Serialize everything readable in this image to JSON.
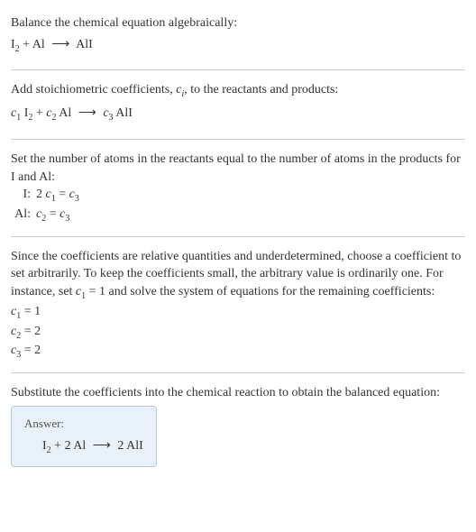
{
  "section1": {
    "title": "Balance the chemical equation algebraically:",
    "equation_parts": {
      "r1": "I",
      "r1_sub": "2",
      "plus": " + ",
      "r2": "Al",
      "arrow": "⟶",
      "p1": "AlI"
    }
  },
  "section2": {
    "title_a": "Add stoichiometric coefficients, ",
    "title_c": "c",
    "title_ci": "i",
    "title_b": ", to the reactants and products:",
    "eq": {
      "c1": "c",
      "c1s": "1",
      "sp1": " I",
      "sp1s": "2",
      "plus": " + ",
      "c2": "c",
      "c2s": "2",
      "sp2": " Al",
      "arrow": "⟶",
      "c3": "c",
      "c3s": "3",
      "sp3": " AlI"
    }
  },
  "section3": {
    "title": "Set the number of atoms in the reactants equal to the number of atoms in the products for I and Al:",
    "rows": [
      {
        "label": "I:",
        "lhs_a": "2 ",
        "lhs_c": "c",
        "lhs_s": "1",
        "eq": " = ",
        "rhs_c": "c",
        "rhs_s": "3"
      },
      {
        "label": "Al:",
        "lhs_a": "",
        "lhs_c": "c",
        "lhs_s": "2",
        "eq": " = ",
        "rhs_c": "c",
        "rhs_s": "3"
      }
    ]
  },
  "section4": {
    "text_a": "Since the coefficients are relative quantities and underdetermined, choose a coefficient to set arbitrarily. To keep the coefficients small, the arbitrary value is ordinarily one. For instance, set ",
    "c": "c",
    "cs": "1",
    "text_b": " = 1 and solve the system of equations for the remaining coefficients:",
    "lines": [
      {
        "c": "c",
        "cs": "1",
        "val": " = 1"
      },
      {
        "c": "c",
        "cs": "2",
        "val": " = 2"
      },
      {
        "c": "c",
        "cs": "3",
        "val": " = 2"
      }
    ]
  },
  "section5": {
    "title": "Substitute the coefficients into the chemical reaction to obtain the balanced equation:",
    "answer_label": "Answer:",
    "eq": {
      "a": "I",
      "as": "2",
      "plus": " + 2 Al ",
      "arrow": "⟶",
      "b": " 2 AlI"
    }
  }
}
